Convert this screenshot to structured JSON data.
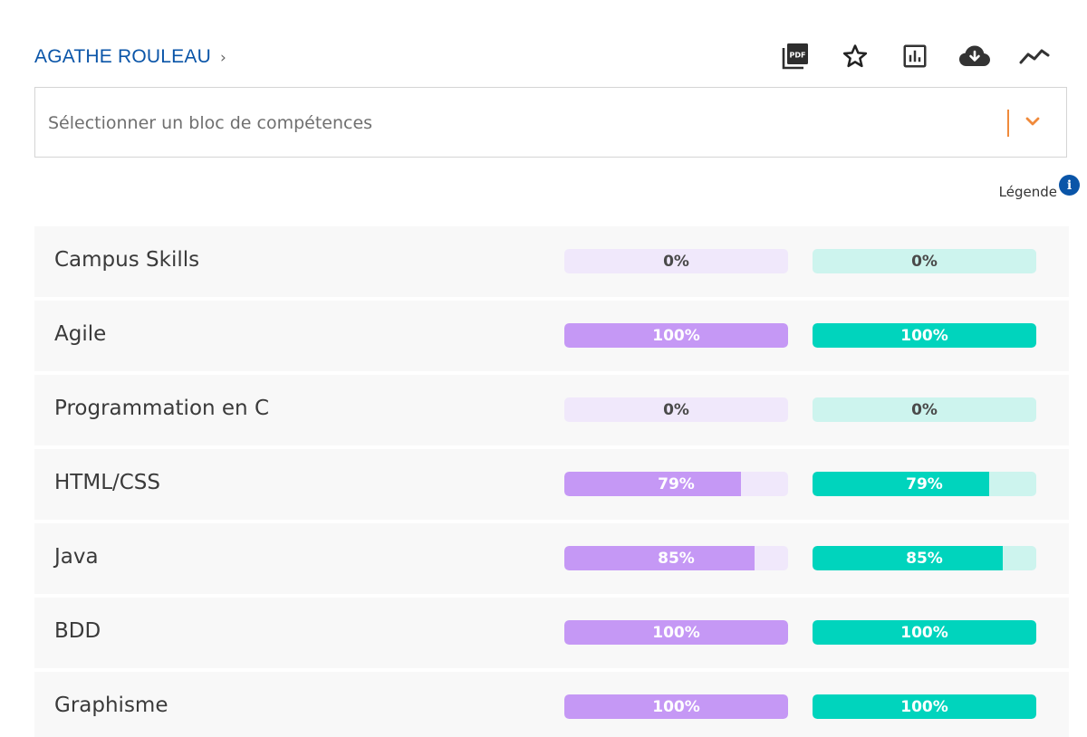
{
  "header": {
    "breadcrumb_name": "AGATHE ROULEAU",
    "breadcrumb_chevron": "›",
    "toolbar": [
      {
        "name": "pdf-button",
        "icon": "pdf-icon"
      },
      {
        "name": "favorite-button",
        "icon": "star-icon"
      },
      {
        "name": "stats-button",
        "icon": "bar-chart-icon"
      },
      {
        "name": "download-button",
        "icon": "cloud-download-icon"
      },
      {
        "name": "trend-button",
        "icon": "trend-line-icon"
      }
    ],
    "pdf_icon_text": "PDF"
  },
  "select": {
    "placeholder": "Sélectionner un bloc de compétences"
  },
  "legend": {
    "label": "Légende",
    "icon_text": "i"
  },
  "colors": {
    "brand_blue": "#0a55a8",
    "accent_orange": "#f08a3b",
    "purple_fill": "#c598f5",
    "purple_track": "#f0e8fb",
    "teal_fill": "#00d4bd",
    "teal_track": "#cdf4ee"
  },
  "skills": [
    {
      "name": "Campus Skills",
      "purple": 0,
      "teal": 0,
      "purple_label": "0%",
      "teal_label": "0%"
    },
    {
      "name": "Agile",
      "purple": 100,
      "teal": 100,
      "purple_label": "100%",
      "teal_label": "100%"
    },
    {
      "name": "Programmation en C",
      "purple": 0,
      "teal": 0,
      "purple_label": "0%",
      "teal_label": "0%"
    },
    {
      "name": "HTML/CSS",
      "purple": 79,
      "teal": 79,
      "purple_label": "79%",
      "teal_label": "79%"
    },
    {
      "name": "Java",
      "purple": 85,
      "teal": 85,
      "purple_label": "85%",
      "teal_label": "85%"
    },
    {
      "name": "BDD",
      "purple": 100,
      "teal": 100,
      "purple_label": "100%",
      "teal_label": "100%"
    },
    {
      "name": "Graphisme",
      "purple": 100,
      "teal": 100,
      "purple_label": "100%",
      "teal_label": "100%"
    }
  ]
}
